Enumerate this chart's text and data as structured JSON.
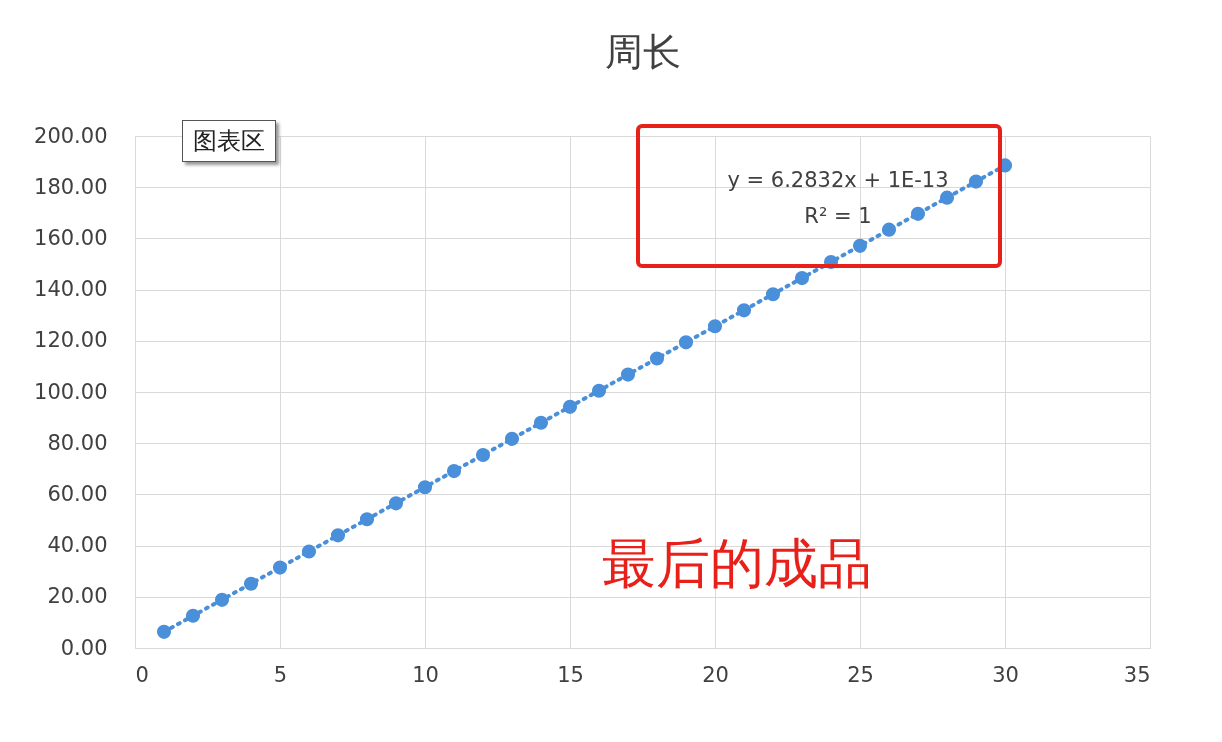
{
  "chart_data": {
    "type": "scatter",
    "title": "周长",
    "x": [
      1,
      2,
      3,
      4,
      5,
      6,
      7,
      8,
      9,
      10,
      11,
      12,
      13,
      14,
      15,
      16,
      17,
      18,
      19,
      20,
      21,
      22,
      23,
      24,
      25,
      26,
      27,
      28,
      29,
      30
    ],
    "series": [
      {
        "marker": "circle",
        "color": "#4a8fd9",
        "values": [
          6.3,
          12.6,
          18.8,
          25.1,
          31.4,
          37.7,
          44.0,
          50.3,
          56.5,
          62.8,
          69.1,
          75.4,
          81.7,
          88.0,
          94.2,
          100.5,
          106.8,
          113.1,
          119.4,
          125.7,
          131.9,
          138.2,
          144.5,
          150.8,
          157.1,
          163.4,
          169.6,
          175.9,
          182.2,
          188.5
        ]
      },
      {
        "type": "line",
        "color": "#4a8fd9",
        "line_style": "dotted",
        "x": [
          1,
          30
        ],
        "values": [
          6.3,
          188.5
        ]
      }
    ],
    "xlim": [
      0,
      35
    ],
    "xticks": [
      0,
      5,
      10,
      15,
      20,
      25,
      30,
      35
    ],
    "ylim": [
      0,
      200
    ],
    "yticks": [
      {
        "value": 0,
        "label": "0.00"
      },
      {
        "value": 20,
        "label": "20.00"
      },
      {
        "value": 40,
        "label": "40.00"
      },
      {
        "value": 60,
        "label": "60.00"
      },
      {
        "value": 80,
        "label": "80.00"
      },
      {
        "value": 100,
        "label": "100.00"
      },
      {
        "value": 120,
        "label": "120.00"
      },
      {
        "value": 140,
        "label": "140.00"
      },
      {
        "value": 160,
        "label": "160.00"
      },
      {
        "value": 180,
        "label": "180.00"
      },
      {
        "value": 200,
        "label": "200.00"
      }
    ],
    "grid": true,
    "annotations": [
      "y = 6.2832x + 1E-13",
      "R² = 1",
      "图表区",
      "最后的成品"
    ]
  }
}
